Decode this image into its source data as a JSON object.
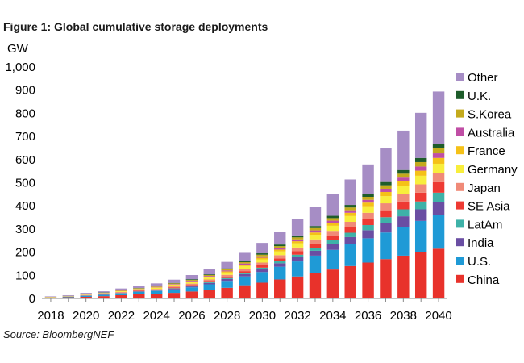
{
  "figure": {
    "title": "Figure 1: Global cumulative storage deployments",
    "source": "Source: BloombergNEF"
  },
  "chart_data": {
    "type": "bar",
    "stacked": true,
    "title": "Figure 1: Global cumulative storage deployments",
    "ylabel": "GW",
    "xlabel": "",
    "ylim": [
      0,
      1000
    ],
    "yticks": [
      0,
      100,
      200,
      300,
      400,
      500,
      600,
      700,
      800,
      900,
      1000
    ],
    "ytick_labels": [
      "0",
      "100",
      "200",
      "300",
      "400",
      "500",
      "600",
      "700",
      "800",
      "900",
      "1,000"
    ],
    "categories": [
      "2018",
      "2019",
      "2020",
      "2021",
      "2022",
      "2023",
      "2024",
      "2025",
      "2026",
      "2027",
      "2028",
      "2029",
      "2030",
      "2031",
      "2032",
      "2033",
      "2034",
      "2035",
      "2036",
      "2037",
      "2038",
      "2039",
      "2040"
    ],
    "xtick_labels": [
      "2018",
      "2020",
      "2022",
      "2024",
      "2026",
      "2028",
      "2030",
      "2032",
      "2034",
      "2036",
      "2038",
      "2040"
    ],
    "legend_position": "right",
    "series": [
      {
        "name": "China",
        "color": "#e8322b",
        "values": [
          3,
          5,
          7,
          10,
          14,
          18,
          20,
          24,
          30,
          38,
          46,
          57,
          68,
          82,
          95,
          110,
          125,
          140,
          155,
          170,
          185,
          200,
          215
        ]
      },
      {
        "name": "U.S.",
        "color": "#1f9ad6",
        "values": [
          1,
          3,
          5,
          6,
          8,
          10,
          12,
          15,
          18,
          23,
          30,
          38,
          46,
          55,
          65,
          75,
          85,
          95,
          105,
          115,
          125,
          135,
          145
        ]
      },
      {
        "name": "India",
        "color": "#6a4ea3",
        "values": [
          0,
          0,
          0,
          1,
          1,
          2,
          2,
          3,
          4,
          6,
          8,
          10,
          12,
          15,
          18,
          21,
          25,
          30,
          35,
          40,
          45,
          50,
          55
        ]
      },
      {
        "name": "LatAm",
        "color": "#3eb2a8",
        "values": [
          0,
          0,
          0,
          0,
          1,
          1,
          1,
          2,
          2,
          3,
          4,
          5,
          7,
          9,
          11,
          13,
          16,
          19,
          22,
          26,
          30,
          34,
          42
        ]
      },
      {
        "name": "SE Asia",
        "color": "#ee3a33",
        "values": [
          0,
          0,
          1,
          1,
          1,
          2,
          2,
          3,
          4,
          5,
          6,
          8,
          10,
          12,
          15,
          18,
          20,
          23,
          26,
          30,
          34,
          38,
          45
        ]
      },
      {
        "name": "Japan",
        "color": "#f08a78",
        "values": [
          1,
          1,
          2,
          2,
          3,
          3,
          4,
          5,
          6,
          7,
          8,
          10,
          12,
          14,
          16,
          18,
          21,
          24,
          27,
          30,
          33,
          36,
          40
        ]
      },
      {
        "name": "Germany",
        "color": "#f8ee3c",
        "values": [
          1,
          1,
          2,
          2,
          3,
          4,
          5,
          6,
          7,
          8,
          10,
          12,
          14,
          16,
          18,
          20,
          22,
          25,
          28,
          31,
          34,
          37,
          40
        ]
      },
      {
        "name": "France",
        "color": "#f5c117",
        "values": [
          0,
          0,
          0,
          1,
          1,
          1,
          2,
          2,
          3,
          4,
          5,
          6,
          7,
          8,
          9,
          10,
          12,
          14,
          16,
          18,
          20,
          22,
          25
        ]
      },
      {
        "name": "Australia",
        "color": "#c04ea5",
        "values": [
          0,
          0,
          1,
          1,
          1,
          1,
          2,
          2,
          3,
          3,
          4,
          5,
          6,
          7,
          8,
          9,
          10,
          11,
          12,
          14,
          16,
          18,
          20
        ]
      },
      {
        "name": "S.Korea",
        "color": "#c4aa1c",
        "values": [
          1,
          1,
          1,
          1,
          2,
          2,
          2,
          3,
          3,
          4,
          5,
          6,
          7,
          8,
          9,
          10,
          11,
          12,
          13,
          15,
          17,
          19,
          22
        ]
      },
      {
        "name": "U.K.",
        "color": "#1e5c2a",
        "values": [
          0,
          0,
          1,
          1,
          1,
          1,
          2,
          2,
          3,
          3,
          4,
          5,
          6,
          7,
          8,
          9,
          10,
          11,
          12,
          14,
          16,
          18,
          20
        ]
      },
      {
        "name": "Other",
        "color": "#a68dc5",
        "values": [
          2,
          3,
          4,
          5,
          7,
          9,
          11,
          14,
          18,
          22,
          28,
          35,
          45,
          55,
          70,
          82,
          95,
          110,
          128,
          145,
          170,
          195,
          225
        ]
      }
    ]
  }
}
